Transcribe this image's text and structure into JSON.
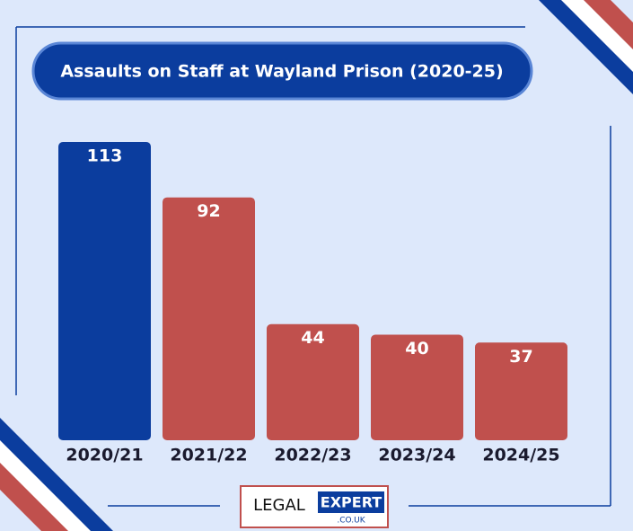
{
  "chart_data": {
    "type": "bar",
    "title": "Assaults on Staff at Wayland Prison (2020-25)",
    "categories": [
      "2020/21",
      "2021/22",
      "2022/23",
      "2023/24",
      "2024/25"
    ],
    "values": [
      113,
      92,
      44,
      40,
      37
    ],
    "colors": [
      "#0b3d9e",
      "#c0504d",
      "#c0504d",
      "#c0504d",
      "#c0504d"
    ]
  },
  "logo": {
    "left": "LEGAL",
    "right": "EXPERT",
    "domain": ".CO.UK"
  }
}
